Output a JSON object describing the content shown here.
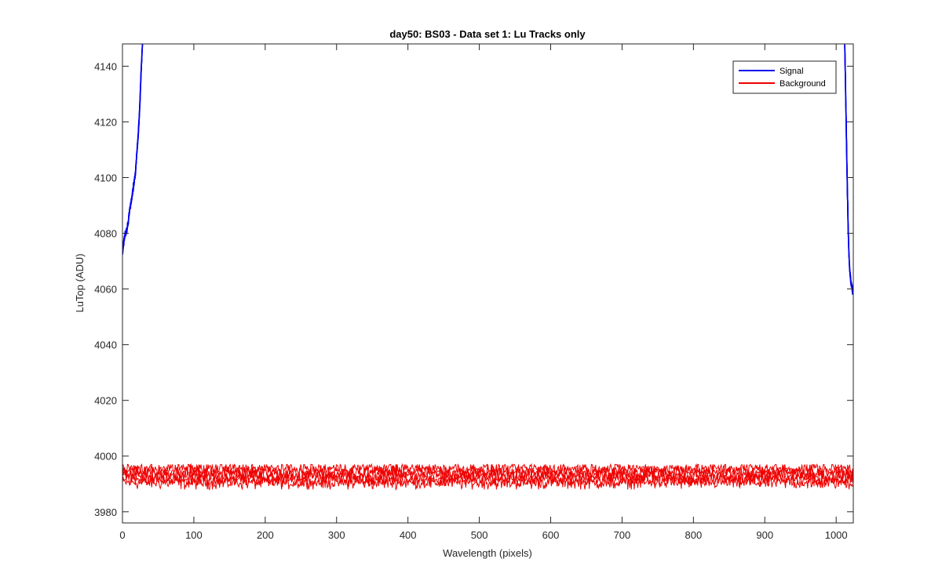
{
  "chart_data": {
    "type": "line",
    "title": "day50: BS03 - Data set 1: Lu Tracks only",
    "xlabel": "Wavelength (pixels)",
    "ylabel": "LuTop (ADU)",
    "xlim": [
      0,
      1024
    ],
    "ylim": [
      3976,
      4148
    ],
    "xticks": [
      0,
      100,
      200,
      300,
      400,
      500,
      600,
      700,
      800,
      900,
      1000
    ],
    "yticks": [
      3980,
      4000,
      4020,
      4040,
      4060,
      4080,
      4100,
      4120,
      4140
    ],
    "grid": false,
    "legend_position": "top-right",
    "series": [
      {
        "name": "Signal",
        "color": "#0000ee",
        "segments": [
          {
            "x": [
              0,
              2,
              4,
              6,
              8,
              10,
              12,
              14,
              16,
              18,
              20,
              22,
              24,
              26,
              28
            ],
            "y": [
              4073,
              4077,
              4080,
              4081,
              4084,
              4088,
              4091,
              4094,
              4098,
              4101,
              4108,
              4115,
              4124,
              4137,
              4148
            ]
          },
          {
            "x": [
              1012,
              1013,
              1014,
              1015,
              1016,
              1017,
              1018,
              1019,
              1020,
              1021,
              1022,
              1023,
              1024
            ],
            "y": [
              4148,
              4135,
              4120,
              4105,
              4092,
              4080,
              4072,
              4067,
              4064,
              4062,
              4061,
              4059,
              4059
            ]
          }
        ]
      },
      {
        "name": "Background",
        "color": "#ee0000",
        "band_min": 3988,
        "band_max": 3997,
        "center": 3993,
        "x_range": [
          0,
          1024
        ]
      }
    ]
  }
}
